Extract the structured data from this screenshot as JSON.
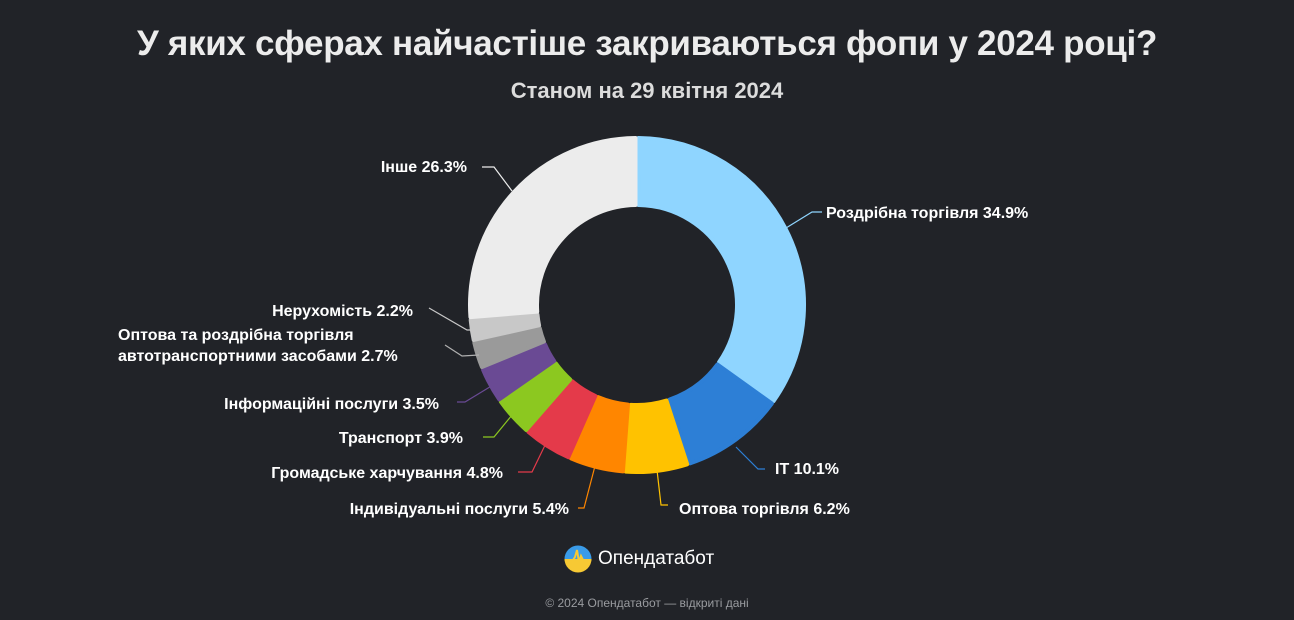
{
  "header": {
    "title": "У яких сферах найчастіше закриваються фопи у 2024 році?",
    "subtitle": "Станом на 29 квітня 2024"
  },
  "chart_data": {
    "type": "pie",
    "variant": "donut",
    "title": "У яких сферах найчастіше закриваються фопи у 2024 році?",
    "subtitle": "Станом на 29 квітня 2024",
    "unit": "%",
    "categories": [
      "Роздрібна торгівля",
      "IT",
      "Оптова торгівля",
      "Індивідуальні послуги",
      "Громадське харчування",
      "Транспорт",
      "Інформаційні послуги",
      "Оптова та роздрібна торгівля автотранспортними засобами",
      "Нерухомість",
      "Інше"
    ],
    "values": [
      34.9,
      10.1,
      6.2,
      5.4,
      4.8,
      3.9,
      3.5,
      2.7,
      2.2,
      26.3
    ],
    "colors": [
      "#8fd5ff",
      "#2d7fd6",
      "#ffc200",
      "#ff8600",
      "#e43a4a",
      "#8cc820",
      "#6a4a94",
      "#9a9a9a",
      "#c8c8c8",
      "#ececec"
    ],
    "legend": "none (data labels with leader lines)"
  },
  "labels": [
    {
      "text": "Роздрібна торгівля 34.9%"
    },
    {
      "text": "IT 10.1%"
    },
    {
      "text": "Оптова торгівля 6.2%"
    },
    {
      "text": "Індивідуальні послуги 5.4%"
    },
    {
      "text": "Громадське харчування 4.8%"
    },
    {
      "text": "Транспорт 3.9%"
    },
    {
      "text": "Інформаційні послуги 3.5%"
    },
    {
      "text_line1": "Оптова та роздрібна торгівля",
      "text_line2": "автотранспортними засобами 2.7%"
    },
    {
      "text": "Нерухомість 2.2%"
    },
    {
      "text": "Інше 26.3%"
    }
  ],
  "brand": {
    "name": "Опендатабот",
    "icon": "opendatabot-logo-icon"
  },
  "footer": {
    "text": "© 2024 Опендатабот — відкриті дані"
  }
}
